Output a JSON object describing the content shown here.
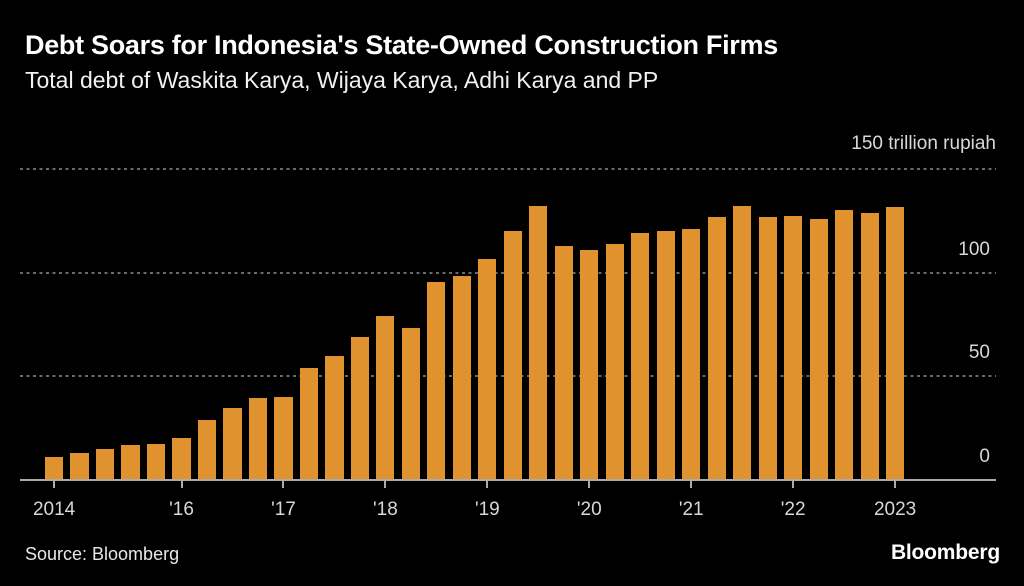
{
  "header": {
    "title": "Debt Soars for Indonesia's State-Owned Construction Firms",
    "subtitle": "Total debt of Waskita Karya, Wijaya Karya, Adhi Karya and PP"
  },
  "chart_data": {
    "type": "bar",
    "title": "Debt Soars for Indonesia's State-Owned Construction Firms",
    "subtitle": "Total debt of Waskita Karya, Wijaya Karya, Adhi Karya and PP",
    "unit_top_label": "150 trillion rupiah",
    "ylabel": "trillion rupiah",
    "ylim": [
      0,
      150
    ],
    "grid": "horizontal-dashed",
    "legend": "none",
    "bar_color": "#DF922E",
    "x": [
      "2014 Q4",
      "2015 Q1",
      "2015 Q2",
      "2015 Q3",
      "2015 Q4",
      "2016 Q1",
      "2016 Q2",
      "2016 Q3",
      "2016 Q4",
      "2017 Q1",
      "2017 Q2",
      "2017 Q3",
      "2017 Q4",
      "2018 Q1",
      "2018 Q2",
      "2018 Q3",
      "2018 Q4",
      "2019 Q1",
      "2019 Q2",
      "2019 Q3",
      "2019 Q4",
      "2020 Q1",
      "2020 Q2",
      "2020 Q3",
      "2020 Q4",
      "2021 Q1",
      "2021 Q2",
      "2021 Q3",
      "2021 Q4",
      "2022 Q1",
      "2022 Q2",
      "2022 Q3",
      "2022 Q4",
      "2023 Q1"
    ],
    "values": [
      11,
      13,
      15,
      17,
      17.5,
      20.5,
      29,
      34.5,
      39.5,
      40,
      54,
      60,
      69,
      79,
      73.5,
      95.5,
      98.5,
      106.5,
      120,
      132,
      113,
      111,
      114,
      119,
      120,
      121,
      127,
      132,
      127,
      127.5,
      126,
      130,
      129,
      131.5
    ],
    "x_axis_ticks": [
      {
        "label": "2014",
        "bar_index": 0
      },
      {
        "label": "'16",
        "bar_index": 5
      },
      {
        "label": "'17",
        "bar_index": 9
      },
      {
        "label": "'18",
        "bar_index": 13
      },
      {
        "label": "'19",
        "bar_index": 17
      },
      {
        "label": "'20",
        "bar_index": 21
      },
      {
        "label": "'21",
        "bar_index": 25
      },
      {
        "label": "'22",
        "bar_index": 29
      },
      {
        "label": "2023",
        "bar_index": 33
      }
    ],
    "y_axis_labels": [
      {
        "text": "100",
        "value": 100
      },
      {
        "text": "50",
        "value": 50
      },
      {
        "text": "0",
        "value": 0
      }
    ],
    "gridline_values": [
      150,
      100,
      50
    ]
  },
  "footer": {
    "source": "Source: Bloomberg",
    "brand": "Bloomberg"
  },
  "colors": {
    "background": "#000000",
    "bar": "#DF922E",
    "title": "#FFFFFF",
    "subtitle": "#F1F1F1",
    "axis_labels": "#D8D8D8",
    "gridline": "#6A6A6A",
    "axis_line": "#ABABAB"
  }
}
